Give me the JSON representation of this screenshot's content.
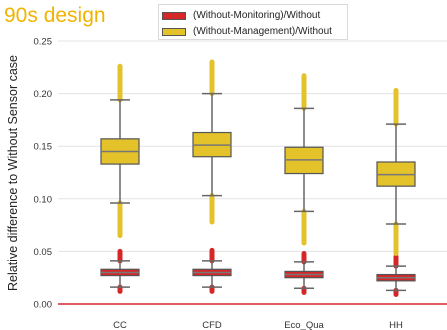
{
  "page_title": "90s design",
  "colors": {
    "title": "#f0b400",
    "without_monitoring": "#d62728",
    "without_management": "#e3c22a",
    "median": "#777777",
    "grid": "#e3e3e3",
    "baseline": "#d62728"
  },
  "chart_data": {
    "type": "box",
    "ylabel": "Relative difference to Without Sensor case",
    "xlabel": "",
    "ylim": [
      0.0,
      0.25
    ],
    "yticks": [
      "0.00",
      "0.05",
      "0.10",
      "0.15",
      "0.20",
      "0.25"
    ],
    "grid": true,
    "legend_position": "top-center",
    "reference_line": 0.0,
    "categories": [
      "CC",
      "CFD",
      "Eco_Qua",
      "HH"
    ],
    "series": [
      {
        "name": "(Without-Monitoring)/Without",
        "color": "#d62728",
        "boxes": [
          {
            "whisker_low": 0.016,
            "q1": 0.027,
            "median": 0.03,
            "q3": 0.033,
            "whisker_high": 0.041,
            "outlier_low": 0.012,
            "outlier_high": 0.05
          },
          {
            "whisker_low": 0.016,
            "q1": 0.027,
            "median": 0.03,
            "q3": 0.033,
            "whisker_high": 0.041,
            "outlier_low": 0.012,
            "outlier_high": 0.051
          },
          {
            "whisker_low": 0.015,
            "q1": 0.025,
            "median": 0.028,
            "q3": 0.031,
            "whisker_high": 0.04,
            "outlier_low": 0.011,
            "outlier_high": 0.048
          },
          {
            "whisker_low": 0.013,
            "q1": 0.022,
            "median": 0.025,
            "q3": 0.028,
            "whisker_high": 0.036,
            "outlier_low": 0.009,
            "outlier_high": 0.045
          }
        ]
      },
      {
        "name": "(Without-Management)/Without",
        "color": "#e3c22a",
        "boxes": [
          {
            "whisker_low": 0.096,
            "q1": 0.133,
            "median": 0.145,
            "q3": 0.157,
            "whisker_high": 0.194,
            "outlier_low": 0.065,
            "outlier_high": 0.226
          },
          {
            "whisker_low": 0.103,
            "q1": 0.14,
            "median": 0.151,
            "q3": 0.163,
            "whisker_high": 0.2,
            "outlier_low": 0.078,
            "outlier_high": 0.23
          },
          {
            "whisker_low": 0.088,
            "q1": 0.124,
            "median": 0.137,
            "q3": 0.149,
            "whisker_high": 0.186,
            "outlier_low": 0.058,
            "outlier_high": 0.217
          },
          {
            "whisker_low": 0.076,
            "q1": 0.112,
            "median": 0.123,
            "q3": 0.135,
            "whisker_high": 0.171,
            "outlier_low": 0.048,
            "outlier_high": 0.203
          }
        ]
      }
    ]
  }
}
